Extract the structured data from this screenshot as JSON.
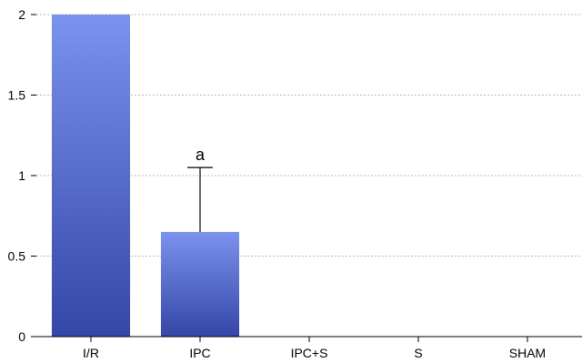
{
  "chart_data": {
    "type": "bar",
    "categories": [
      "I/R",
      "IPC",
      "IPC+S",
      "S",
      "SHAM"
    ],
    "values": [
      2.0,
      0.65,
      0,
      0,
      0
    ],
    "error_upper": [
      null,
      1.05,
      null,
      null,
      null
    ],
    "annotations": [
      {
        "category": "IPC",
        "text": "a"
      }
    ],
    "y_ticks": [
      "0",
      "0.5",
      "1",
      "1.5",
      "2"
    ],
    "ylim": [
      0,
      2
    ],
    "grid": true,
    "title": "",
    "xlabel": "",
    "ylabel": "",
    "colors": {
      "bar_top": "#7b92ee",
      "bar_bottom": "#3546a6",
      "grid": "#b8b8b8",
      "axis": "#000000"
    }
  }
}
